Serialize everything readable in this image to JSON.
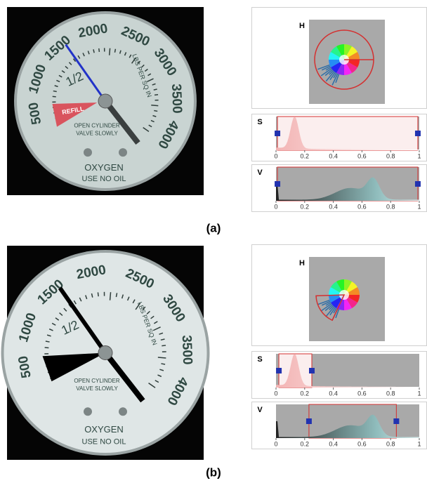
{
  "panels": [
    {
      "caption": "(a)",
      "gauge": {
        "scale": [
          500,
          1000,
          1500,
          2000,
          2500,
          3000,
          3500,
          4000
        ],
        "fraction": "1/2",
        "refill": "REFILL",
        "unit": "LBS PER SQ IN",
        "warning": [
          "OPEN CYLINDER",
          "VALVE SLOWLY"
        ],
        "gas": "OXYGEN",
        "caution": "USE NO OIL"
      },
      "controls": {
        "ticks": [
          0,
          0.2,
          0.4,
          0.6,
          0.8,
          1
        ],
        "hue": {
          "label": "H"
        },
        "saturation": {
          "label": "S",
          "range": [
            0.01,
            0.99
          ]
        },
        "value": {
          "label": "V",
          "range": [
            0.01,
            0.99
          ]
        }
      }
    },
    {
      "caption": "(b)",
      "gauge": {
        "scale": [
          500,
          1000,
          1500,
          2000,
          2500,
          3000,
          3500,
          4000
        ],
        "fraction": "1/2",
        "unit": "LBS PER SQ IN",
        "warning": [
          "OPEN CYLINDER",
          "VALVE SLOWLY"
        ],
        "gas": "OXYGEN",
        "caution": "USE NO OIL"
      },
      "controls": {
        "ticks": [
          0,
          0.2,
          0.4,
          0.6,
          0.8,
          1
        ],
        "hue": {
          "label": "H"
        },
        "saturation": {
          "label": "S",
          "range": [
            0.02,
            0.25
          ]
        },
        "value": {
          "label": "V",
          "range": [
            0.23,
            0.84
          ]
        }
      }
    }
  ]
}
